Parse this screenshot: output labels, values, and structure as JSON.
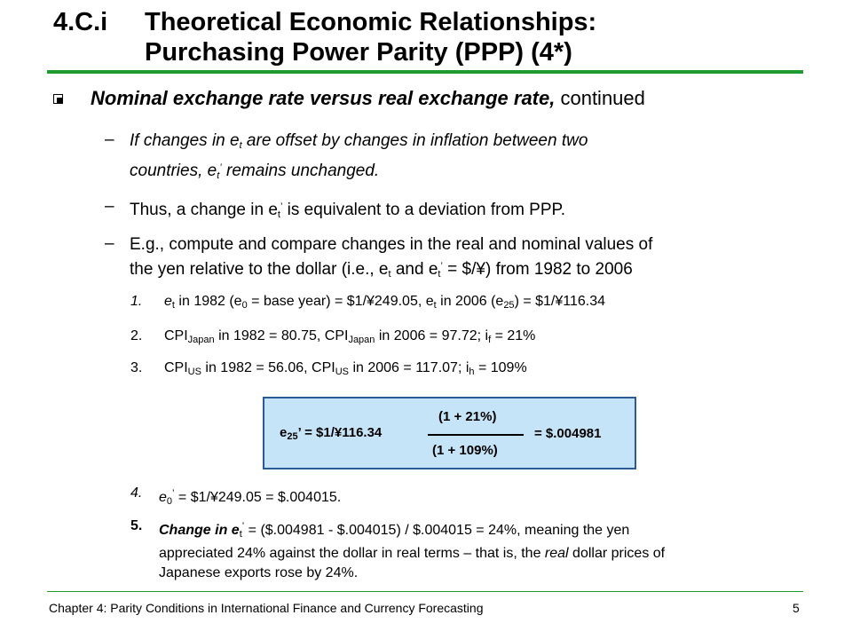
{
  "title": {
    "number": "4.C.i",
    "line1": "Theoretical Economic Relationships:",
    "line2": "Purchasing Power Parity (PPP) (4*)"
  },
  "main_bullet": {
    "emphasis": "Nominal exchange rate versus real exchange rate,",
    "rest": " continued"
  },
  "dashes": [
    {
      "symbol": "–"
    },
    {
      "symbol": "–",
      "text_a": "Thus, a change in e",
      "text_b": " is equivalent to a deviation from PPP."
    },
    {
      "symbol": "–",
      "line1": "E.g., compute and compare changes in the real and nominal values of",
      "line2_a": "the yen relative to the dollar (i.e., e",
      "line2_b": " and e",
      "line2_c": " = $/¥) from 1982 to 2006"
    }
  ],
  "dash1": {
    "a": "If changes in e",
    "b": " are offset by changes in inflation between two",
    "c": "countries, e",
    "d": " remains unchanged."
  },
  "numbered": {
    "n1": {
      "num": "1.",
      "a": "e",
      "b": " in 1982 (e",
      "c": " = base year) = $1/¥249.05, e",
      "d": " in 2006 (e",
      "e": ") = $1/¥116.34"
    },
    "n2": {
      "num": "2.",
      "a": "CPI",
      "sub1": "Japan",
      "b": " in 1982 = 80.75, CPI",
      "sub2": "Japan",
      "c": " in 2006 = 97.72; i",
      "sub3": "f",
      "d": " = 21%"
    },
    "n3": {
      "num": "3.",
      "a": "CPI",
      "sub1": "US",
      "b": " in 1982 = 56.06, CPI",
      "sub2": "US",
      "c": " in 2006 = 117.07; i",
      "sub3": "h",
      "d": " = 109%"
    },
    "n4": {
      "num": "4.",
      "a": "e",
      "sub": "0",
      "sup": "’",
      "b": " = $1/¥249.05 = $.004015."
    },
    "n5": {
      "num": "5.",
      "bold_a": "Change in e",
      "sub": "t",
      "sup": "’",
      "b": " = ($.004981 - $.004015) / $.004015 = 24%, meaning the yen",
      "line2": "appreciated 24% against the dollar in real terms – that is, the ",
      "italic": "real",
      "line2_end": " dollar prices of",
      "line3": "Japanese exports rose by 24%."
    }
  },
  "equation": {
    "lhs_e": "e",
    "lhs_sub": "25",
    "lhs_rest": "’ =  $1/¥116.34",
    "numerator": "(1 + 21%)",
    "denominator": "(1 + 109%)",
    "result": "= $.004981"
  },
  "subscripts": {
    "t": "t",
    "zero": "0",
    "25": "25",
    "prime": "’"
  },
  "footer": {
    "chapter": "Chapter 4: Parity Conditions in International Finance and Currency Forecasting",
    "page": "5"
  },
  "colors": {
    "rule": "#1f9a2e",
    "box_fill": "#c6e4f7",
    "box_border": "#2a5a9a"
  }
}
